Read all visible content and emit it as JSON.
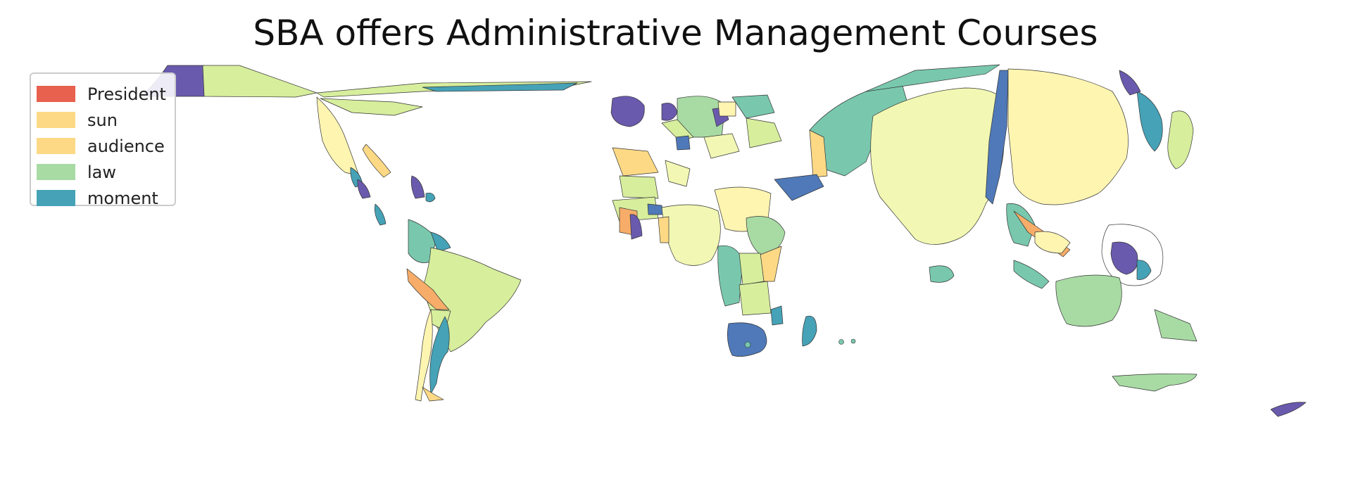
{
  "title": "SBA offers Administrative Management Courses",
  "legend": {
    "placement": "top-left",
    "items": [
      {
        "label": "President",
        "color": "#e8604e"
      },
      {
        "label": "sun",
        "color": "#fdd985"
      },
      {
        "label": "audience",
        "color": "#fdd985"
      },
      {
        "label": "law",
        "color": "#a8dba4"
      },
      {
        "label": "moment",
        "color": "#46a2b6"
      }
    ]
  },
  "palette": {
    "purple": "#6a5aad",
    "blue": "#4f79b8",
    "teal": "#46a2b6",
    "green_teal": "#79c8ae",
    "light_green": "#a8dba4",
    "yellow_green": "#d7ee9d",
    "pale_yellow": "#f2f8b3",
    "cream": "#fef5b1",
    "yellow": "#fdd985",
    "orange": "#f7ad69",
    "red": "#e8604e",
    "border": "#333333"
  }
}
